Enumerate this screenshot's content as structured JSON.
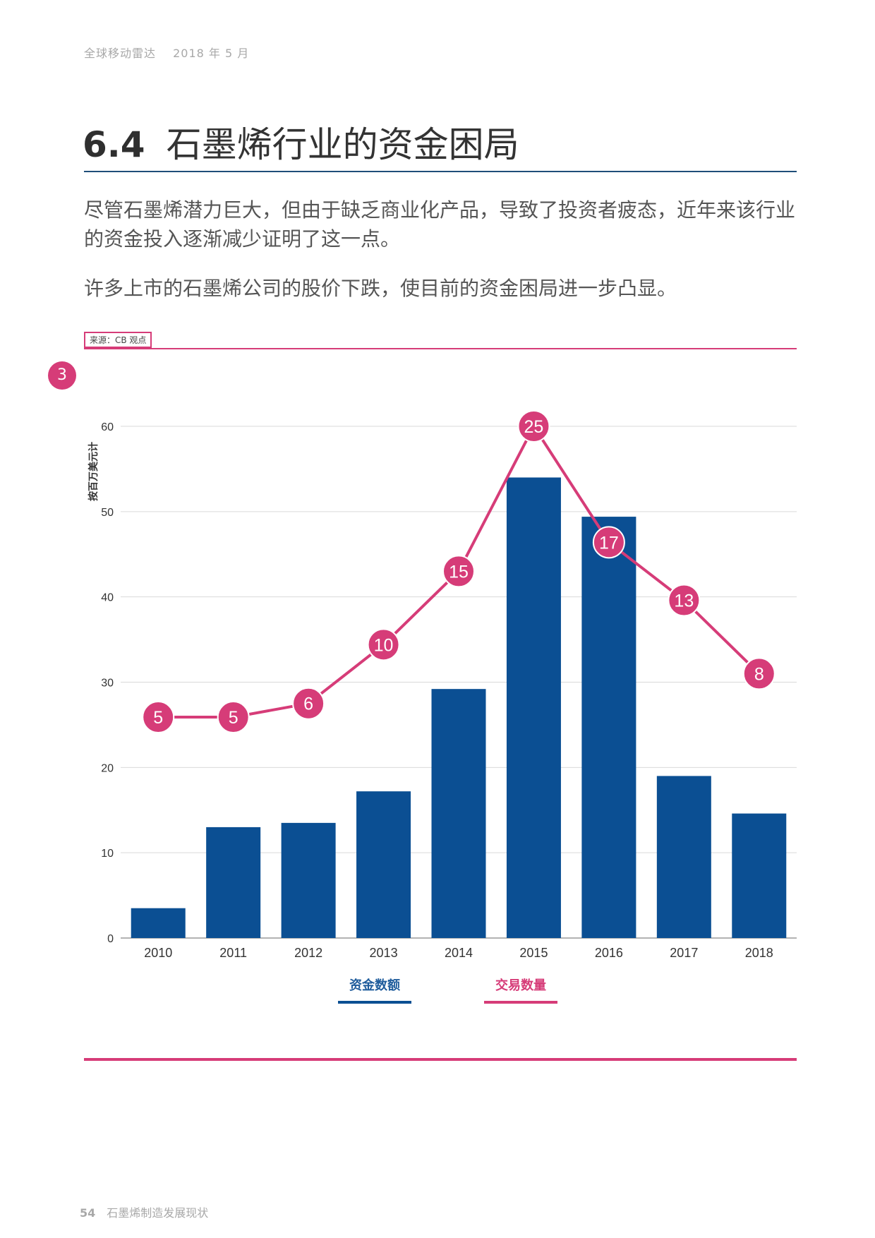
{
  "header": {
    "publication": "全球移动雷达",
    "date": "2018 年 5 月"
  },
  "section": {
    "number": "6.4",
    "title": "石墨烯行业的资金困局"
  },
  "paragraphs": [
    "尽管石墨烯潜力巨大，但由于缺乏商业化产品，导致了投资者疲态，近年来该行业的资金投入逐渐减少证明了这一点。",
    "许多上市的石墨烯公司的股价下跌，使目前的资金困局进一步凸显。"
  ],
  "source": "来源：CB 观点",
  "figure_number": "3",
  "colors": {
    "bars": "#0b4f93",
    "line": "#d63c78",
    "grid": "#d9d9d9"
  },
  "chart_data": {
    "type": "bar",
    "title": "",
    "ylabel": "按百万美元计",
    "xlabel": "",
    "ylim": [
      0,
      60
    ],
    "yticks": [
      0,
      10,
      20,
      30,
      40,
      50,
      60
    ],
    "grid": true,
    "categories": [
      "2010",
      "2011",
      "2012",
      "2013",
      "2014",
      "2015",
      "2016",
      "2017",
      "2018"
    ],
    "series": [
      {
        "name": "资金数额",
        "type": "bar",
        "values": [
          3.5,
          13,
          13.5,
          17.2,
          29.2,
          54,
          49.4,
          19,
          14.6
        ]
      },
      {
        "name": "交易数量",
        "type": "line",
        "values": [
          5,
          5,
          6,
          10,
          15,
          25,
          17,
          13,
          8
        ],
        "plotted_levels": [
          25.9,
          25.9,
          27.5,
          34.4,
          43.0,
          60.0,
          46.4,
          39.6,
          31.0
        ]
      }
    ]
  },
  "legend": {
    "funds": "资金数额",
    "deals": "交易数量"
  },
  "footer": {
    "page": "54",
    "text": "石墨烯制造发展现状"
  }
}
